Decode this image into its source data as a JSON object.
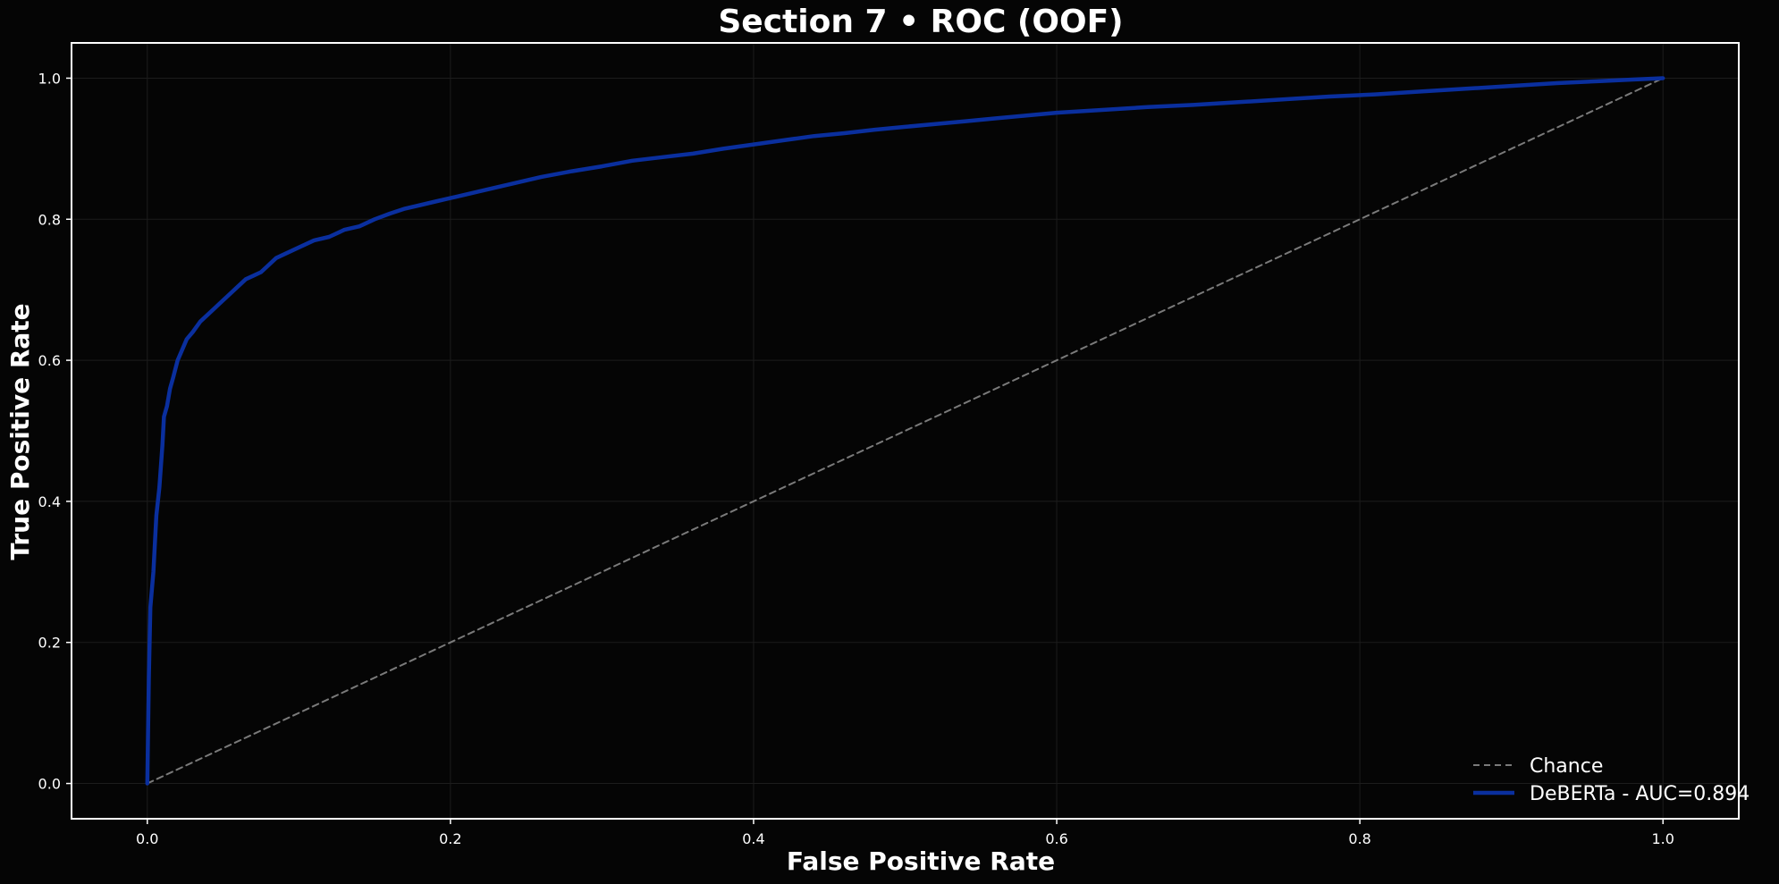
{
  "chart_data": {
    "type": "line",
    "title": "Section 7 • ROC (OOF)",
    "xlabel": "False Positive Rate",
    "ylabel": "True Positive Rate",
    "xlim": [
      -0.05,
      1.05
    ],
    "ylim": [
      -0.05,
      1.05
    ],
    "x_ticks": [
      0.0,
      0.2,
      0.4,
      0.6,
      0.8,
      1.0
    ],
    "y_ticks": [
      0.0,
      0.2,
      0.4,
      0.6,
      0.8,
      1.0
    ],
    "x_tick_labels": [
      "0.0",
      "0.2",
      "0.4",
      "0.6",
      "0.8",
      "1.0"
    ],
    "y_tick_labels": [
      "0.0",
      "0.2",
      "0.4",
      "0.6",
      "0.8",
      "1.0"
    ],
    "grid": true,
    "legend_position": "lower-right",
    "background": "#050505",
    "series": [
      {
        "name": "Chance",
        "style": "dashed",
        "color": "#7a7a7a",
        "x": [
          0.0,
          1.0
        ],
        "y": [
          0.0,
          1.0
        ]
      },
      {
        "name": "DeBERTa - AUC=0.894",
        "style": "solid",
        "color": "#0a2f9e",
        "x": [
          0.0,
          0.001,
          0.002,
          0.004,
          0.006,
          0.008,
          0.01,
          0.011,
          0.013,
          0.015,
          0.017,
          0.02,
          0.023,
          0.026,
          0.03,
          0.035,
          0.04,
          0.045,
          0.05,
          0.055,
          0.06,
          0.065,
          0.07,
          0.075,
          0.08,
          0.085,
          0.09,
          0.1,
          0.11,
          0.12,
          0.13,
          0.14,
          0.15,
          0.16,
          0.17,
          0.18,
          0.19,
          0.2,
          0.22,
          0.24,
          0.26,
          0.28,
          0.3,
          0.32,
          0.34,
          0.36,
          0.38,
          0.4,
          0.42,
          0.44,
          0.46,
          0.48,
          0.5,
          0.52,
          0.54,
          0.56,
          0.58,
          0.6,
          0.63,
          0.66,
          0.69,
          0.72,
          0.75,
          0.78,
          0.81,
          0.84,
          0.87,
          0.9,
          0.93,
          0.96,
          0.98,
          1.0
        ],
        "y": [
          0.0,
          0.15,
          0.25,
          0.3,
          0.38,
          0.42,
          0.48,
          0.52,
          0.535,
          0.56,
          0.575,
          0.6,
          0.615,
          0.63,
          0.64,
          0.655,
          0.665,
          0.675,
          0.685,
          0.695,
          0.705,
          0.715,
          0.72,
          0.725,
          0.735,
          0.745,
          0.75,
          0.76,
          0.77,
          0.775,
          0.785,
          0.79,
          0.8,
          0.808,
          0.815,
          0.82,
          0.825,
          0.83,
          0.84,
          0.85,
          0.86,
          0.868,
          0.875,
          0.883,
          0.888,
          0.893,
          0.9,
          0.906,
          0.912,
          0.918,
          0.922,
          0.927,
          0.931,
          0.935,
          0.939,
          0.943,
          0.947,
          0.951,
          0.955,
          0.959,
          0.962,
          0.966,
          0.97,
          0.974,
          0.977,
          0.981,
          0.985,
          0.989,
          0.993,
          0.996,
          0.998,
          1.0
        ]
      }
    ]
  }
}
